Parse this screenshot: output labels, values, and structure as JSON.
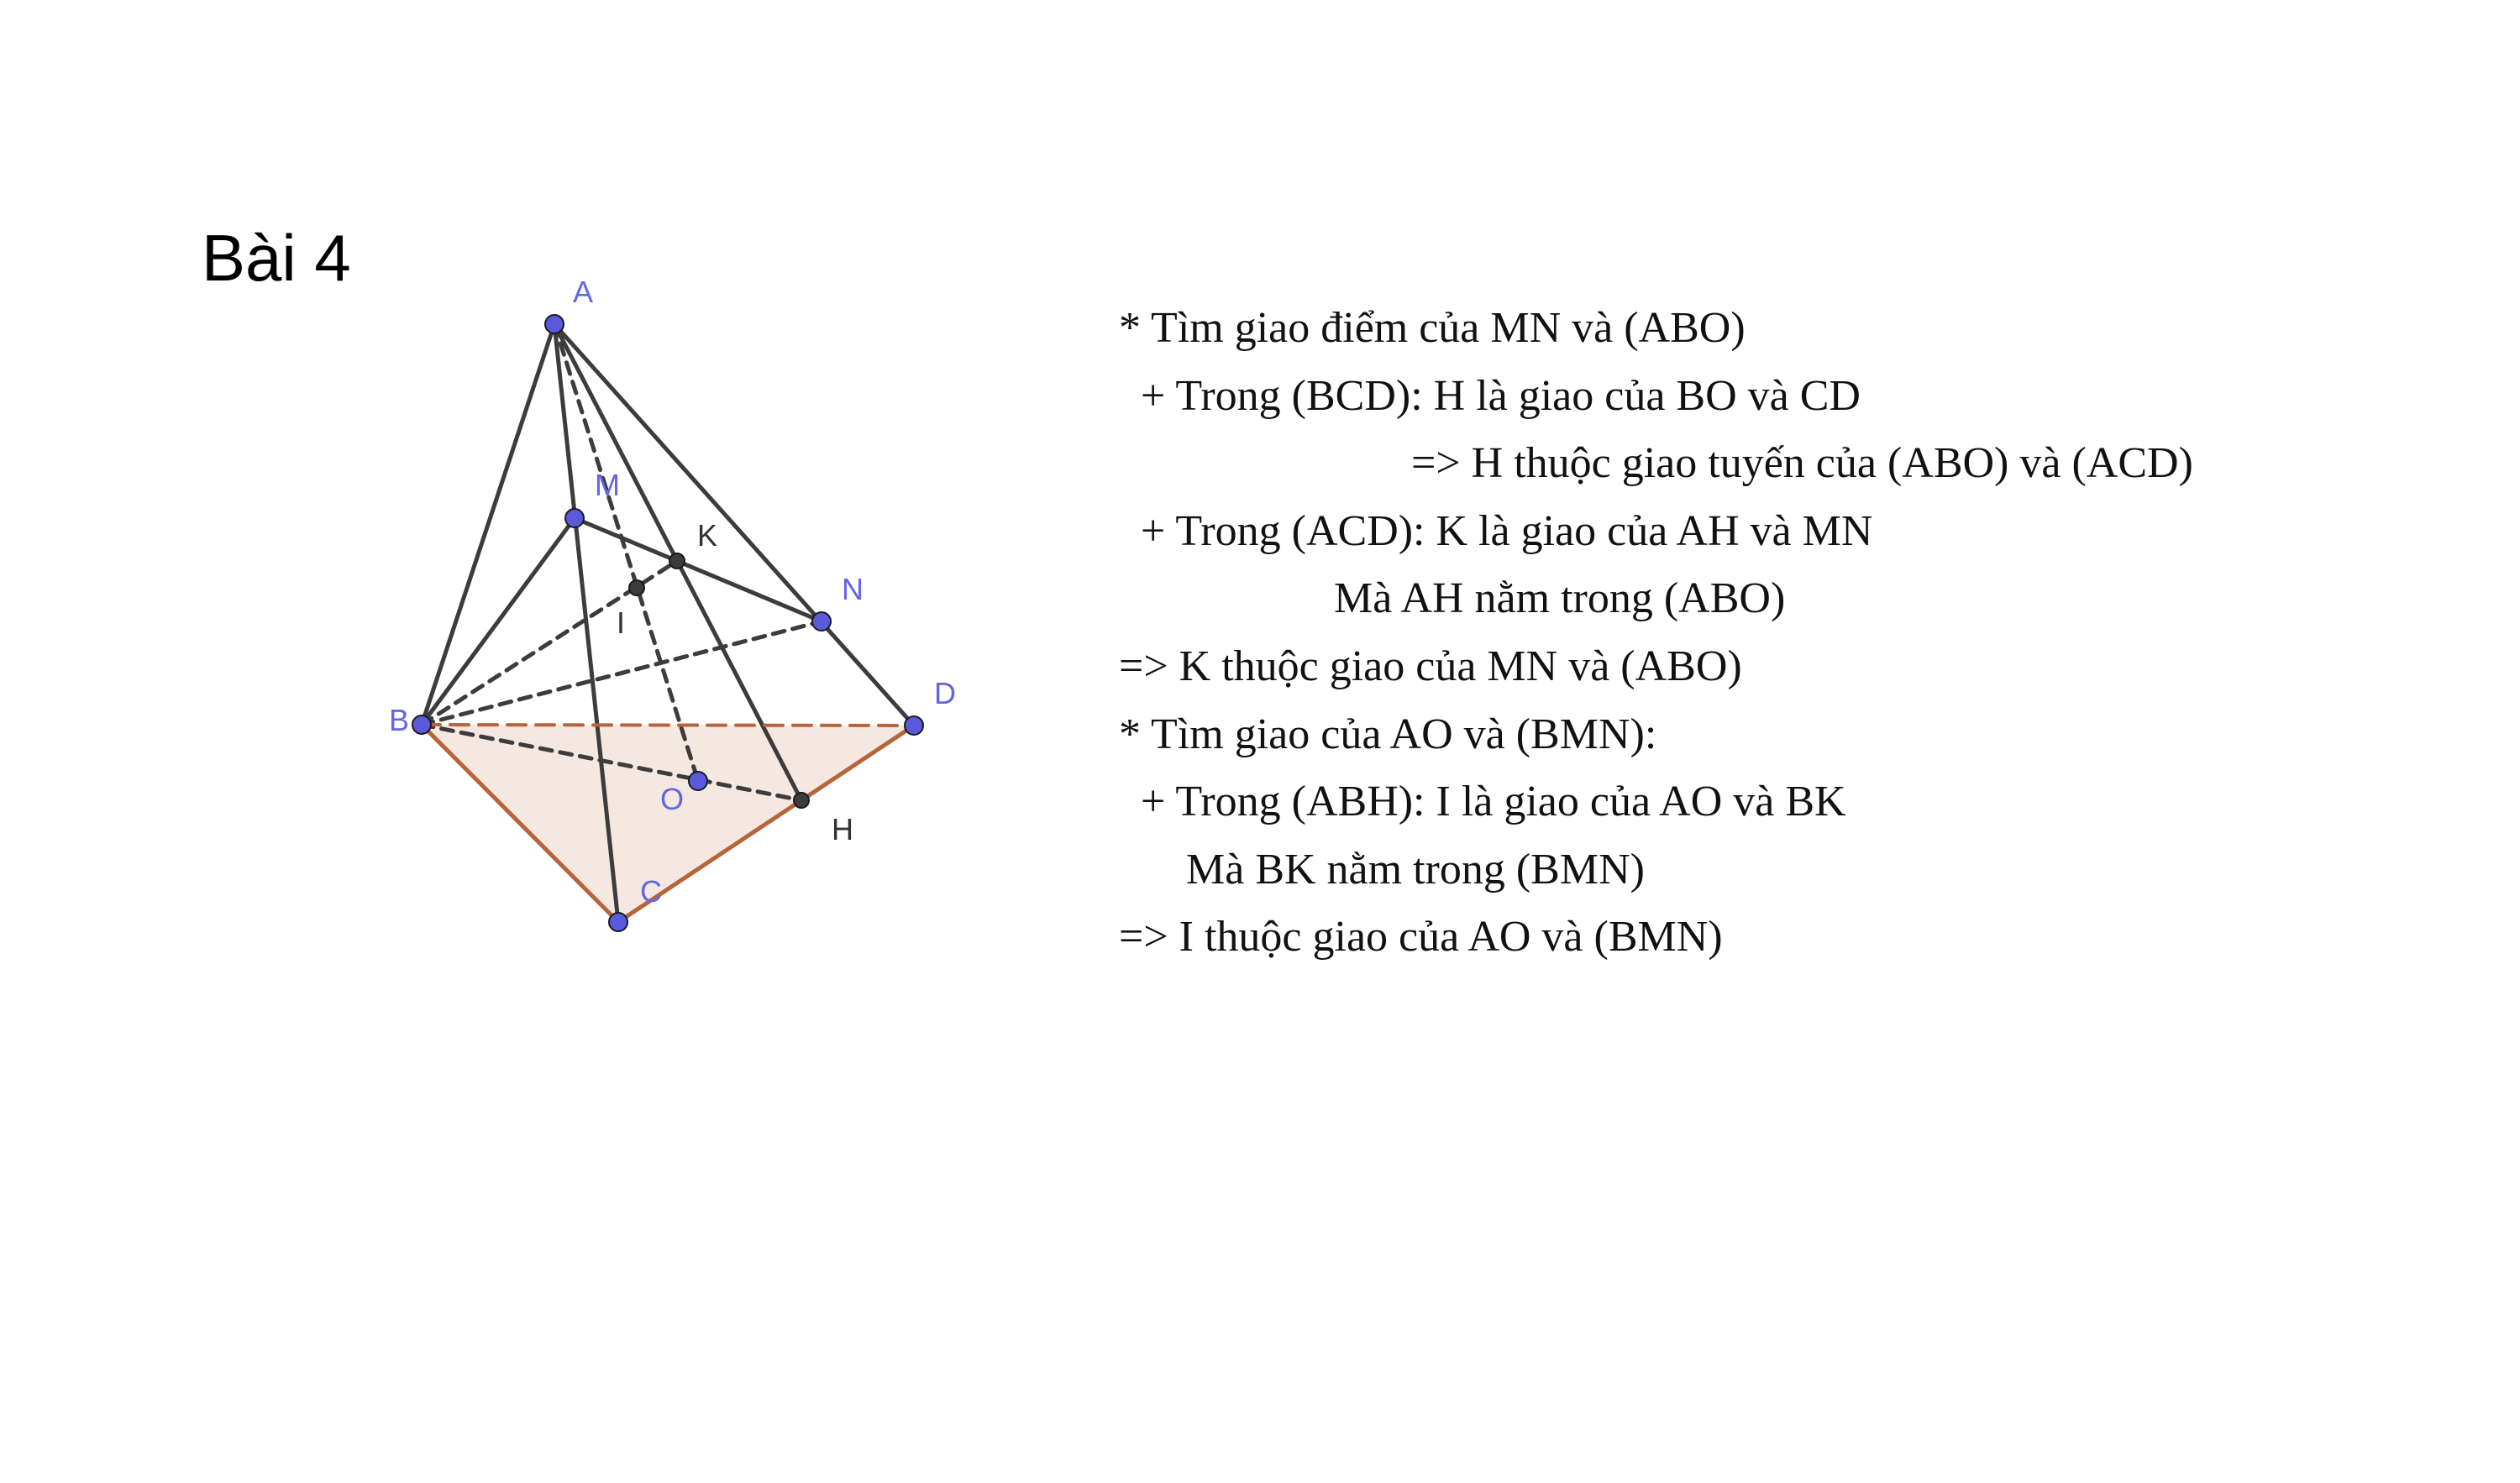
{
  "title": "Bài 4",
  "colors": {
    "edge": "#3c3c3c",
    "base_edge": "#b5643c",
    "base_fill": "#f5e8e1",
    "point_blue": "#5a5adc",
    "point_dark": "#3c3c3c",
    "label_blue": "#6464e6",
    "label_dark": "#333333"
  },
  "figure": {
    "points": [
      {
        "id": "A",
        "label": "A",
        "color": "blue"
      },
      {
        "id": "B",
        "label": "B",
        "color": "blue"
      },
      {
        "id": "C",
        "label": "C",
        "color": "blue"
      },
      {
        "id": "D",
        "label": "D",
        "color": "blue"
      },
      {
        "id": "M",
        "label": "M",
        "color": "blue"
      },
      {
        "id": "N",
        "label": "N",
        "color": "blue"
      },
      {
        "id": "O",
        "label": "O",
        "color": "blue"
      },
      {
        "id": "K",
        "label": "K",
        "color": "dark"
      },
      {
        "id": "I",
        "label": "I",
        "color": "dark"
      },
      {
        "id": "H",
        "label": "H",
        "color": "dark"
      }
    ],
    "segments": [
      {
        "from": "A",
        "to": "B",
        "style": "solid"
      },
      {
        "from": "A",
        "to": "C",
        "style": "solid"
      },
      {
        "from": "A",
        "to": "D",
        "style": "solid"
      },
      {
        "from": "A",
        "to": "H",
        "style": "solid"
      },
      {
        "from": "B",
        "to": "M",
        "style": "solid"
      },
      {
        "from": "M",
        "to": "N",
        "style": "solid"
      },
      {
        "from": "A",
        "to": "O",
        "style": "dashed"
      },
      {
        "from": "B",
        "to": "K",
        "style": "dashed"
      },
      {
        "from": "B",
        "to": "N",
        "style": "dashed"
      },
      {
        "from": "B",
        "to": "H",
        "style": "dashed"
      },
      {
        "from": "B",
        "to": "C",
        "style": "base"
      },
      {
        "from": "C",
        "to": "D",
        "style": "base"
      },
      {
        "from": "B",
        "to": "D",
        "style": "base-dashed"
      }
    ]
  },
  "solution": {
    "lines": [
      "* Tìm giao điểm của MN và (ABO)",
      "+ Trong (BCD): H là giao của BO và CD",
      "=> H thuộc giao tuyến của (ABO) và (ACD)",
      "+ Trong (ACD): K là giao của AH và MN",
      "Mà AH nằm trong (ABO)",
      "=> K thuộc giao của MN và (ABO)",
      "* Tìm giao của AO và (BMN):",
      "+ Trong (ABH): I là giao của AO và BK",
      "Mà BK nằm trong (BMN)",
      "=> I thuộc giao của AO và (BMN)"
    ]
  }
}
